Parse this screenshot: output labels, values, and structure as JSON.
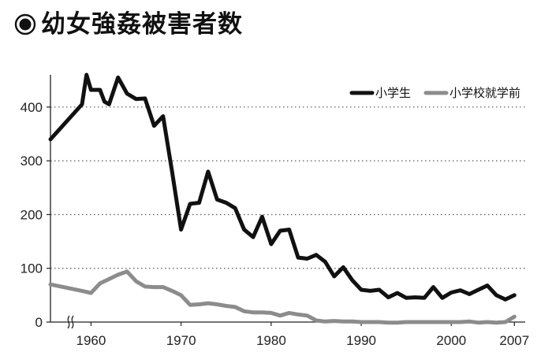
{
  "title": "◉幼女強姦被害者数",
  "chart_data": {
    "type": "line",
    "title": "幼女強姦被害者数",
    "ylim": [
      0,
      460
    ],
    "xlim": [
      1955.5,
      2008.2
    ],
    "y_ticks": [
      "0",
      "100",
      "200",
      "300",
      "400"
    ],
    "y_tick_values": [
      0,
      100,
      200,
      300,
      400
    ],
    "x_ticks": [
      "1960",
      "1970",
      "1980",
      "1990",
      "2000",
      "2007"
    ],
    "x_tick_values": [
      1960,
      1970,
      1980,
      1990,
      2000,
      2007
    ],
    "grid": "horizontal-dotted",
    "legend_position": "top-right",
    "axis_break": "x",
    "series": [
      {
        "name": "小学生",
        "color": "#111111",
        "x": [
          1955.5,
          1959,
          1959.5,
          1960,
          1961,
          1961.5,
          1962,
          1963,
          1964,
          1965,
          1966,
          1967,
          1968,
          1969,
          1970,
          1971,
          1972,
          1973,
          1974,
          1975,
          1976,
          1977,
          1978,
          1979,
          1980,
          1981,
          1982,
          1983,
          1984,
          1985,
          1986,
          1987,
          1988,
          1989,
          1990,
          1991,
          1992,
          1993,
          1994,
          1995,
          1996,
          1997,
          1998,
          1999,
          2000,
          2001,
          2002,
          2003,
          2004,
          2005,
          2006,
          2007
        ],
        "values": [
          340,
          405,
          460,
          432,
          432,
          410,
          405,
          455,
          425,
          415,
          416,
          365,
          383,
          280,
          172,
          220,
          222,
          280,
          228,
          222,
          212,
          172,
          158,
          196,
          145,
          170,
          172,
          120,
          118,
          125,
          112,
          85,
          102,
          78,
          60,
          58,
          60,
          46,
          54,
          45,
          46,
          45,
          65,
          45,
          55,
          59,
          52,
          60,
          68,
          50,
          42,
          50
        ]
      },
      {
        "name": "小学校就学前",
        "color": "#8c8c8c",
        "x": [
          1955.5,
          1959,
          1960,
          1961,
          1962,
          1963,
          1964,
          1965,
          1966,
          1967,
          1968,
          1969,
          1970,
          1971,
          1972,
          1973,
          1974,
          1975,
          1976,
          1977,
          1978,
          1979,
          1980,
          1981,
          1982,
          1983,
          1984,
          1985,
          1986,
          1987,
          1988,
          1989,
          1990,
          1991,
          1992,
          1993,
          1994,
          1995,
          1996,
          1997,
          1998,
          1999,
          2000,
          2001,
          2002,
          2003,
          2004,
          2005,
          2006,
          2007
        ],
        "values": [
          70,
          58,
          54,
          72,
          80,
          88,
          94,
          76,
          66,
          65,
          65,
          58,
          50,
          32,
          33,
          35,
          33,
          30,
          28,
          20,
          18,
          18,
          17,
          12,
          17,
          14,
          12,
          3,
          1,
          2,
          1,
          1,
          0,
          0,
          0,
          -1,
          -1,
          0,
          0,
          0,
          0,
          0,
          0,
          0,
          1,
          -1,
          0,
          -1,
          0,
          10
        ]
      }
    ]
  }
}
